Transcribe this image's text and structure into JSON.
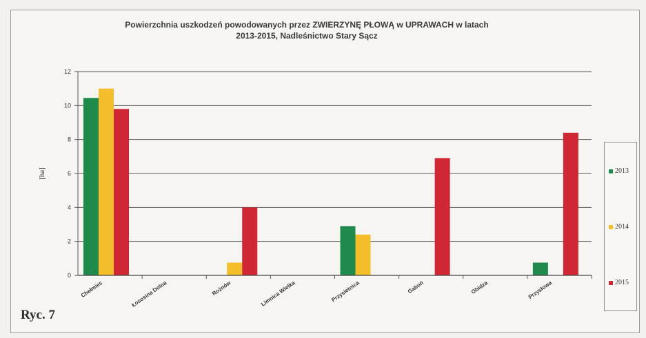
{
  "chart_data": {
    "type": "bar",
    "title_line1": "Powierzchnia uszkodzeń powodowanych przez ZWIERZYNĘ PŁOWĄ w UPRAWACH w latach",
    "title_line2": "2013-2015, Nadleśnictwo Stary Sącz",
    "ylabel": "[ha]",
    "xlabel": "",
    "ylim": [
      0,
      12
    ],
    "yticks": [
      "0",
      "2",
      "4",
      "6",
      "8",
      "10",
      "12"
    ],
    "grid": true,
    "legend_position": "right",
    "categories": [
      "Chełmiec",
      "Łososina Dolna",
      "Rożnów",
      "Limnica Wielka",
      "Przysietnica",
      "Gaboń",
      "Obidza",
      "Przysłowa"
    ],
    "series": [
      {
        "name": "2013",
        "color": "#1f8a4c",
        "values": [
          10.45,
          0,
          0,
          0,
          2.9,
          0,
          0,
          0.75
        ]
      },
      {
        "name": "2014",
        "color": "#f4bd2a",
        "values": [
          11.0,
          0,
          0.75,
          0,
          2.4,
          0,
          0,
          0
        ]
      },
      {
        "name": "2015",
        "color": "#cf2733",
        "values": [
          9.8,
          0,
          4.0,
          0,
          0,
          6.9,
          0,
          8.4
        ]
      }
    ]
  },
  "caption": "Ryc. 7"
}
